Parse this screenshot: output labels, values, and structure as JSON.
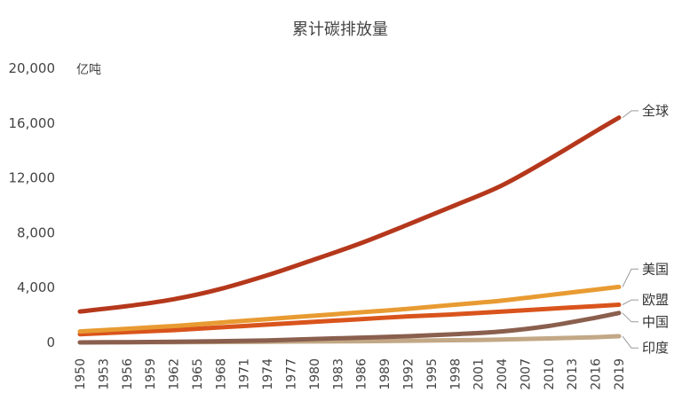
{
  "chart_data": {
    "type": "line",
    "title": "累计碳排放量",
    "unit_label": "亿吨",
    "xlabel": "",
    "ylabel": "",
    "ylim": [
      0,
      20000
    ],
    "yticks": [
      0,
      4000,
      8000,
      12000,
      16000,
      20000
    ],
    "ytick_labels": [
      "0",
      "4,000",
      "8,000",
      "12,000",
      "16,000",
      "20,000"
    ],
    "xlim": [
      1950,
      2019
    ],
    "x_tick_labels": [
      "1950",
      "1953",
      "1956",
      "1959",
      "1962",
      "1965",
      "1968",
      "1971",
      "1974",
      "1977",
      "1980",
      "1983",
      "1986",
      "1989",
      "1992",
      "1995",
      "1998",
      "2001",
      "2004",
      "2007",
      "2010",
      "2013",
      "2016",
      "2019"
    ],
    "grid": false,
    "legend": "direct-labels-right",
    "series": [
      {
        "name": "全球",
        "color": "#b5381c",
        "points": [
          [
            1950,
            2250
          ],
          [
            1956,
            2650
          ],
          [
            1962,
            3150
          ],
          [
            1968,
            3900
          ],
          [
            1974,
            4900
          ],
          [
            1980,
            6050
          ],
          [
            1986,
            7250
          ],
          [
            1992,
            8600
          ],
          [
            1998,
            10000
          ],
          [
            2004,
            11450
          ],
          [
            2010,
            13350
          ],
          [
            2016,
            15400
          ],
          [
            2019,
            16400
          ]
        ]
      },
      {
        "name": "美国",
        "color": "#e89b32",
        "points": [
          [
            1950,
            800
          ],
          [
            1956,
            1000
          ],
          [
            1962,
            1200
          ],
          [
            1968,
            1450
          ],
          [
            1974,
            1700
          ],
          [
            1980,
            1950
          ],
          [
            1986,
            2200
          ],
          [
            1992,
            2450
          ],
          [
            1998,
            2750
          ],
          [
            2004,
            3050
          ],
          [
            2010,
            3450
          ],
          [
            2016,
            3850
          ],
          [
            2019,
            4050
          ]
        ]
      },
      {
        "name": "欧盟",
        "color": "#d9541c",
        "points": [
          [
            1950,
            600
          ],
          [
            1956,
            750
          ],
          [
            1962,
            900
          ],
          [
            1968,
            1100
          ],
          [
            1974,
            1300
          ],
          [
            1980,
            1500
          ],
          [
            1986,
            1700
          ],
          [
            1992,
            1900
          ],
          [
            1998,
            2050
          ],
          [
            2004,
            2250
          ],
          [
            2010,
            2450
          ],
          [
            2016,
            2650
          ],
          [
            2019,
            2750
          ]
        ]
      },
      {
        "name": "中国",
        "color": "#8a5f4e",
        "points": [
          [
            1950,
            0
          ],
          [
            1956,
            20
          ],
          [
            1962,
            50
          ],
          [
            1968,
            90
          ],
          [
            1974,
            150
          ],
          [
            1980,
            250
          ],
          [
            1986,
            350
          ],
          [
            1992,
            450
          ],
          [
            1998,
            600
          ],
          [
            2004,
            800
          ],
          [
            2010,
            1200
          ],
          [
            2016,
            1800
          ],
          [
            2019,
            2150
          ]
        ]
      },
      {
        "name": "印度",
        "color": "#c2a886",
        "points": [
          [
            1950,
            0
          ],
          [
            1956,
            10
          ],
          [
            1962,
            20
          ],
          [
            1968,
            30
          ],
          [
            1974,
            50
          ],
          [
            1980,
            70
          ],
          [
            1986,
            90
          ],
          [
            1992,
            120
          ],
          [
            1998,
            160
          ],
          [
            2004,
            210
          ],
          [
            2010,
            290
          ],
          [
            2016,
            380
          ],
          [
            2019,
            450
          ]
        ]
      }
    ],
    "label_targets": {
      "全球": 16900,
      "美国": 5350,
      "欧盟": 3100,
      "中国": 1500,
      "印度": -400
    }
  }
}
